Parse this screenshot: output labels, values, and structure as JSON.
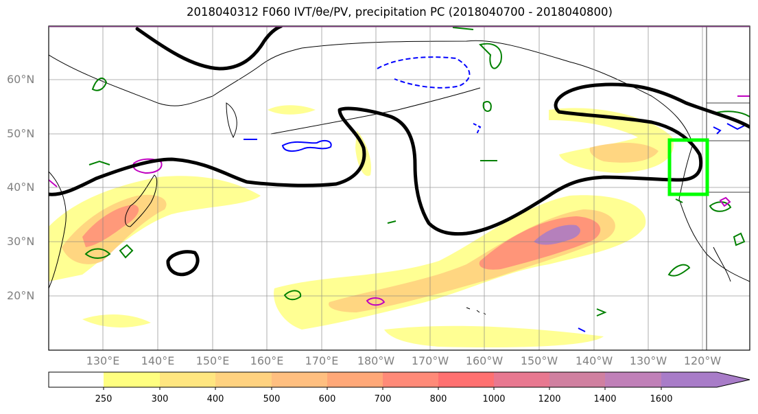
{
  "title": "2018040312 F060 IVT/θe/PV, precipitation PC (2018040700 - 2018040800)",
  "map": {
    "lat_labels": [
      "60°N",
      "50°N",
      "40°N",
      "30°N",
      "20°N"
    ],
    "lon_labels": [
      "130°E",
      "140°E",
      "150°E",
      "160°E",
      "170°E",
      "180°W",
      "170°W",
      "160°W",
      "150°W",
      "140°W",
      "130°W",
      "120°W"
    ],
    "ivt_fill_colors": [
      "#ffff80",
      "#ffe680",
      "#ffd280",
      "#ffbf80",
      "#ffa878",
      "#ff8a78",
      "#e87890",
      "#c880a8",
      "#a87cc8"
    ]
  },
  "colorbar": {
    "ticks": [
      "250",
      "300",
      "400",
      "500",
      "600",
      "700",
      "800",
      "1000",
      "1200",
      "1400",
      "1600"
    ],
    "colors": [
      "#ffffff",
      "#ffff80",
      "#ffe680",
      "#ffd280",
      "#ffbf80",
      "#ffa878",
      "#ff8a78",
      "#ff7070",
      "#e87890",
      "#d080a0",
      "#c080b8",
      "#a87cc8"
    ]
  },
  "legend_colors": {
    "theta_e": "#000000",
    "pv_positive": "#008000",
    "pv_negative": "#0000ff",
    "pv_other": "#c000c0",
    "target_box": "#00ff00"
  }
}
